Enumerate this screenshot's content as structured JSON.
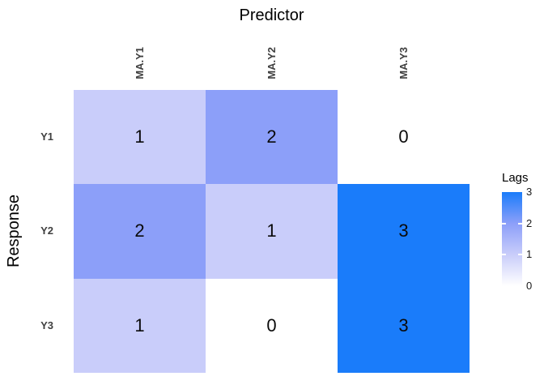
{
  "chart_data": {
    "type": "heatmap",
    "top_axis_title": "Predictor",
    "ylabel": "Response",
    "columns": [
      "MA.Y1",
      "MA.Y2",
      "MA.Y3"
    ],
    "rows": [
      "Y1",
      "Y2",
      "Y3"
    ],
    "values": [
      [
        1,
        2,
        0
      ],
      [
        2,
        1,
        3
      ],
      [
        1,
        0,
        3
      ]
    ],
    "legend": {
      "title": "Lags",
      "tick_labels": [
        "3",
        "2",
        "1",
        "0"
      ],
      "range": [
        0,
        3
      ],
      "position": "right"
    },
    "colorscale": {
      "0": "#ffffff",
      "1": "#c9cdfa",
      "2": "#8c9ff9",
      "3": "#1a7cfa"
    },
    "grid": false,
    "text_color": "#0a0a0a",
    "tick_label_color": "#404040"
  }
}
